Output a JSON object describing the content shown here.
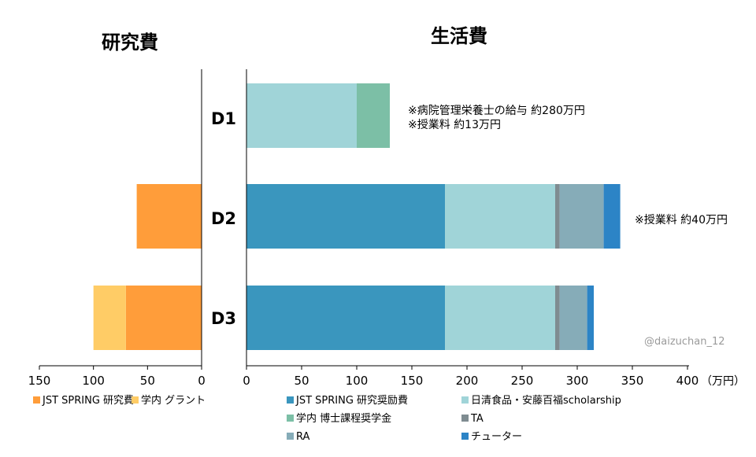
{
  "chart_data": [
    {
      "type": "bar",
      "orientation": "horizontal-reversed",
      "title": "研究費",
      "categories": [
        "D1",
        "D2",
        "D3"
      ],
      "series": [
        {
          "name": "JST SPRING 研究費",
          "color": "#FF9D3A",
          "values": [
            0,
            60,
            70
          ]
        },
        {
          "name": "学内 グラント",
          "color": "#FFCC66",
          "values": [
            0,
            0,
            30
          ]
        }
      ],
      "xlim": [
        150,
        0
      ],
      "ticks": [
        "150",
        "100",
        "50",
        "0"
      ],
      "tick_values": [
        150,
        100,
        50,
        0
      ],
      "grid": false,
      "legend_position": "bottom"
    },
    {
      "type": "bar",
      "orientation": "horizontal",
      "title": "生活費",
      "categories": [
        "D1",
        "D2",
        "D3"
      ],
      "series": [
        {
          "name": "JST SPRING 研究奨励費",
          "color": "#3A96BE",
          "values": [
            0,
            180,
            180
          ]
        },
        {
          "name": "日清食品・安藤百福scholarship",
          "color": "#A0D4D8",
          "values": [
            100,
            100,
            100
          ]
        },
        {
          "name": "学内 博士課程奨学金",
          "color": "#7CBFA6",
          "values": [
            30,
            0,
            0
          ]
        },
        {
          "name": "TA",
          "color": "#7F8C91",
          "values": [
            0,
            4,
            4
          ]
        },
        {
          "name": "RA",
          "color": "#86ACB8",
          "values": [
            0,
            40,
            25
          ]
        },
        {
          "name": "チューター",
          "color": "#2C84C6",
          "values": [
            0,
            15,
            6
          ]
        }
      ],
      "xlim": [
        0,
        400
      ],
      "ticks": [
        "0",
        "50",
        "100",
        "150",
        "200",
        "250",
        "300",
        "350",
        "400"
      ],
      "tick_values": [
        0,
        50,
        100,
        150,
        200,
        250,
        300,
        350,
        400
      ],
      "unit": "（万円）",
      "grid": false,
      "legend_position": "bottom"
    }
  ],
  "annotations": {
    "d1_line1": "※病院管理栄養士の給与 約280万円",
    "d1_line2": "※授業料 約13万円",
    "d2_line1": "※授業料 約40万円"
  },
  "watermark": "@daizuchan_12"
}
